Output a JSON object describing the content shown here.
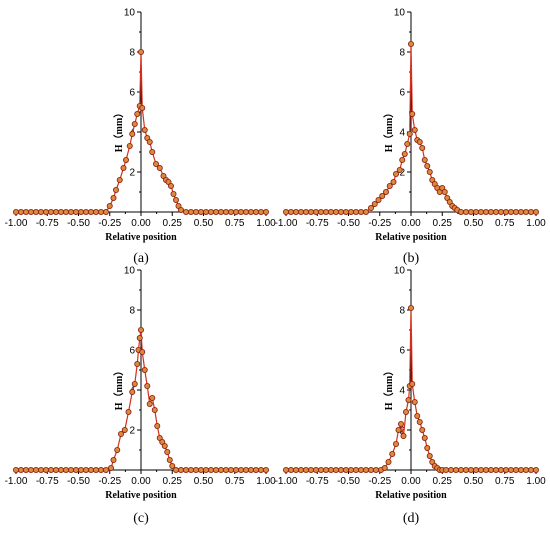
{
  "colors": {
    "line": "#d2301c",
    "marker_fill": "#d98a3c",
    "marker_edge": "#8b1a10",
    "axis": "#000000"
  },
  "chart_data": [
    {
      "panel": "(a)",
      "type": "line",
      "xlabel": "Relative position",
      "ylabel": "H（mm）",
      "xlim": [
        -1.0,
        1.0
      ],
      "ylim": [
        0,
        10
      ],
      "xticks": [
        "-1.00",
        "-0.75",
        "-0.50",
        "-0.25",
        "0.00",
        "0.25",
        "0.50",
        "0.75",
        "1.00"
      ],
      "yticks": [
        "2",
        "4",
        "6",
        "8",
        "10"
      ],
      "grid": false,
      "series": [
        {
          "x": [
            -1.0,
            -0.96,
            -0.92,
            -0.88,
            -0.84,
            -0.8,
            -0.76,
            -0.72,
            -0.68,
            -0.64,
            -0.6,
            -0.56,
            -0.52,
            -0.48,
            -0.44,
            -0.4,
            -0.36,
            -0.32,
            -0.28,
            -0.25,
            -0.22,
            -0.2,
            -0.17,
            -0.14,
            -0.12,
            -0.09,
            -0.07,
            -0.05,
            -0.03,
            -0.01,
            0.0,
            0.01,
            0.03,
            0.05,
            0.07,
            0.09,
            0.12,
            0.15,
            0.18,
            0.2,
            0.22,
            0.24,
            0.26,
            0.28,
            0.3,
            0.32,
            0.36,
            0.4,
            0.44,
            0.48,
            0.52,
            0.56,
            0.6,
            0.64,
            0.68,
            0.72,
            0.76,
            0.8,
            0.84,
            0.88,
            0.92,
            0.96,
            1.0
          ],
          "y": [
            0,
            0,
            0,
            0,
            0,
            0,
            0,
            0,
            0,
            0,
            0,
            0,
            0,
            0,
            0,
            0,
            0,
            0,
            0,
            0.3,
            0.7,
            1.1,
            1.6,
            2.2,
            2.6,
            3.3,
            3.9,
            4.4,
            4.9,
            5.3,
            8.0,
            5.2,
            4.1,
            3.7,
            3.5,
            3.0,
            2.4,
            2.2,
            1.8,
            1.6,
            1.5,
            1.3,
            0.9,
            0.6,
            0.3,
            0.1,
            0,
            0,
            0,
            0,
            0,
            0,
            0,
            0,
            0,
            0,
            0,
            0,
            0,
            0,
            0,
            0,
            0
          ]
        }
      ]
    },
    {
      "panel": "(b)",
      "type": "line",
      "xlabel": "Relative position",
      "ylabel": "H（mm）",
      "xlim": [
        -1.0,
        1.0
      ],
      "ylim": [
        0,
        10
      ],
      "xticks": [
        "-1.00",
        "-0.75",
        "-0.50",
        "-0.25",
        "0.00",
        "0.25",
        "0.50",
        "0.75",
        "1.00"
      ],
      "yticks": [
        "2",
        "4",
        "6",
        "8",
        "10"
      ],
      "grid": false,
      "series": [
        {
          "x": [
            -1.0,
            -0.96,
            -0.92,
            -0.88,
            -0.84,
            -0.8,
            -0.76,
            -0.72,
            -0.68,
            -0.64,
            -0.6,
            -0.56,
            -0.52,
            -0.48,
            -0.44,
            -0.4,
            -0.36,
            -0.32,
            -0.29,
            -0.26,
            -0.23,
            -0.2,
            -0.17,
            -0.14,
            -0.12,
            -0.09,
            -0.07,
            -0.05,
            -0.03,
            -0.01,
            0.0,
            0.01,
            0.03,
            0.05,
            0.07,
            0.09,
            0.11,
            0.13,
            0.15,
            0.17,
            0.19,
            0.21,
            0.23,
            0.25,
            0.27,
            0.29,
            0.31,
            0.33,
            0.35,
            0.37,
            0.4,
            0.44,
            0.48,
            0.52,
            0.56,
            0.6,
            0.64,
            0.68,
            0.72,
            0.76,
            0.8,
            0.84,
            0.88,
            0.92,
            0.96,
            1.0
          ],
          "y": [
            0,
            0,
            0,
            0,
            0,
            0,
            0,
            0,
            0,
            0,
            0,
            0,
            0,
            0,
            0,
            0,
            0,
            0.2,
            0.4,
            0.6,
            0.8,
            1.0,
            1.3,
            1.5,
            1.9,
            2.1,
            2.6,
            2.9,
            3.4,
            3.9,
            8.4,
            4.9,
            4.1,
            3.6,
            3.5,
            3.2,
            2.6,
            2.3,
            2.0,
            1.6,
            1.4,
            1.2,
            1.0,
            1.2,
            1.0,
            0.7,
            0.5,
            0.3,
            0.2,
            0.1,
            0,
            0,
            0,
            0,
            0,
            0,
            0,
            0,
            0,
            0,
            0,
            0,
            0,
            0,
            0,
            0
          ]
        }
      ]
    },
    {
      "panel": "(c)",
      "type": "line",
      "xlabel": "Relative position",
      "ylabel": "H（mm）",
      "xlim": [
        -1.0,
        1.0
      ],
      "ylim": [
        0,
        10
      ],
      "xticks": [
        "-1.00",
        "-0.75",
        "-0.50",
        "-0.25",
        "0.00",
        "0.25",
        "0.50",
        "0.75",
        "1.00"
      ],
      "yticks": [
        "2",
        "4",
        "6",
        "8",
        "10"
      ],
      "grid": false,
      "series": [
        {
          "x": [
            -1.0,
            -0.96,
            -0.92,
            -0.88,
            -0.84,
            -0.8,
            -0.76,
            -0.72,
            -0.68,
            -0.64,
            -0.6,
            -0.56,
            -0.52,
            -0.48,
            -0.44,
            -0.4,
            -0.36,
            -0.32,
            -0.28,
            -0.24,
            -0.22,
            -0.19,
            -0.16,
            -0.13,
            -0.1,
            -0.07,
            -0.05,
            -0.03,
            -0.02,
            -0.01,
            0.0,
            0.01,
            0.03,
            0.05,
            0.07,
            0.09,
            0.11,
            0.13,
            0.15,
            0.17,
            0.19,
            0.21,
            0.23,
            0.25,
            0.28,
            0.32,
            0.36,
            0.4,
            0.44,
            0.48,
            0.52,
            0.56,
            0.6,
            0.64,
            0.68,
            0.72,
            0.76,
            0.8,
            0.84,
            0.88,
            0.92,
            0.96,
            1.0
          ],
          "y": [
            0,
            0,
            0,
            0,
            0,
            0,
            0,
            0,
            0,
            0,
            0,
            0,
            0,
            0,
            0,
            0,
            0,
            0,
            0,
            0.1,
            0.5,
            1.0,
            1.8,
            2.0,
            2.9,
            3.9,
            4.3,
            5.3,
            6.0,
            6.6,
            7.0,
            5.9,
            5.0,
            4.2,
            3.3,
            3.6,
            3.0,
            2.2,
            1.6,
            1.4,
            1.2,
            0.9,
            0.5,
            0.2,
            0,
            0,
            0,
            0,
            0,
            0,
            0,
            0,
            0,
            0,
            0,
            0,
            0,
            0,
            0,
            0,
            0,
            0,
            0
          ]
        }
      ]
    },
    {
      "panel": "(d)",
      "type": "line",
      "xlabel": "Relative position",
      "ylabel": "H（mm）",
      "xlim": [
        -1.0,
        1.0
      ],
      "ylim": [
        0,
        10
      ],
      "xticks": [
        "-1.00",
        "-0.75",
        "-0.50",
        "-0.25",
        "0.00",
        "0.25",
        "0.50",
        "0.75",
        "1.00"
      ],
      "yticks": [
        "2",
        "4",
        "6",
        "8",
        "10"
      ],
      "grid": false,
      "series": [
        {
          "x": [
            -1.0,
            -0.96,
            -0.92,
            -0.88,
            -0.84,
            -0.8,
            -0.76,
            -0.72,
            -0.68,
            -0.64,
            -0.6,
            -0.56,
            -0.52,
            -0.48,
            -0.44,
            -0.4,
            -0.36,
            -0.32,
            -0.28,
            -0.24,
            -0.21,
            -0.18,
            -0.15,
            -0.12,
            -0.1,
            -0.08,
            -0.06,
            -0.04,
            -0.02,
            -0.01,
            0.0,
            0.01,
            0.03,
            0.05,
            0.07,
            0.09,
            0.11,
            0.13,
            0.15,
            0.17,
            0.19,
            0.21,
            0.23,
            0.25,
            0.28,
            0.32,
            0.36,
            0.4,
            0.44,
            0.48,
            0.52,
            0.56,
            0.6,
            0.64,
            0.68,
            0.72,
            0.76,
            0.8,
            0.84,
            0.88,
            0.92,
            0.96,
            1.0
          ],
          "y": [
            0,
            0,
            0,
            0,
            0,
            0,
            0,
            0,
            0,
            0,
            0,
            0,
            0,
            0,
            0,
            0,
            0,
            0,
            0,
            0,
            0.1,
            0.4,
            0.8,
            1.3,
            2.0,
            2.3,
            1.7,
            2.9,
            3.5,
            4.2,
            8.1,
            4.3,
            3.4,
            2.7,
            2.4,
            2.0,
            1.6,
            1.1,
            0.7,
            0.4,
            0.2,
            0.1,
            0,
            0,
            0,
            0,
            0,
            0,
            0,
            0,
            0,
            0,
            0,
            0,
            0,
            0,
            0,
            0,
            0,
            0,
            0,
            0,
            0
          ]
        }
      ]
    }
  ]
}
